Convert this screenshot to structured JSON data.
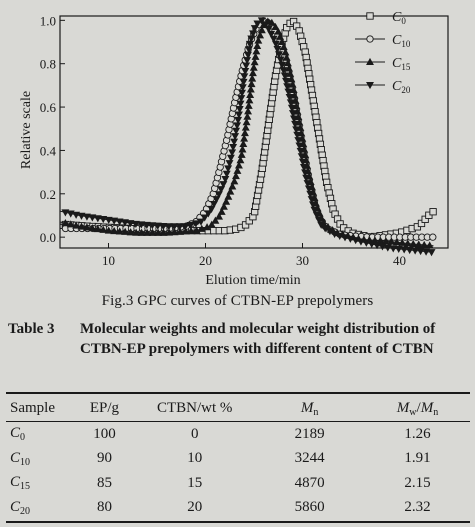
{
  "chart_data": {
    "type": "line",
    "title": "",
    "xlabel": "Elution time/min",
    "ylabel": "Relative scale",
    "xlim": [
      5,
      45
    ],
    "ylim": [
      -0.05,
      1.02
    ],
    "x_ticks": [
      10,
      20,
      30,
      40
    ],
    "y_ticks": [
      0.0,
      0.2,
      0.4,
      0.6,
      0.8,
      1.0
    ],
    "x_tick_labels": [
      "10",
      "20",
      "30",
      "40"
    ],
    "y_tick_labels": [
      "0.0",
      "0.2",
      "0.4",
      "0.6",
      "0.8",
      "1.0"
    ],
    "grid": false,
    "legend_position": "top-right",
    "series": [
      {
        "name": "C0",
        "label_main": "C",
        "label_sub": "0",
        "marker": "square",
        "points": [
          [
            5,
            0.06
          ],
          [
            8,
            0.05
          ],
          [
            12,
            0.04
          ],
          [
            16,
            0.03
          ],
          [
            20,
            0.03
          ],
          [
            22,
            0.03
          ],
          [
            23,
            0.035
          ],
          [
            24,
            0.05
          ],
          [
            25,
            0.1
          ],
          [
            25.8,
            0.3
          ],
          [
            26.5,
            0.52
          ],
          [
            27.2,
            0.74
          ],
          [
            27.8,
            0.88
          ],
          [
            28.4,
            0.97
          ],
          [
            29,
            1.0
          ],
          [
            29.6,
            0.96
          ],
          [
            30.3,
            0.85
          ],
          [
            31,
            0.66
          ],
          [
            31.8,
            0.44
          ],
          [
            32.5,
            0.25
          ],
          [
            33.2,
            0.12
          ],
          [
            34,
            0.05
          ],
          [
            35,
            0.02
          ],
          [
            37,
            0.0
          ],
          [
            40,
            0.02
          ],
          [
            42,
            0.05
          ],
          [
            43,
            0.1
          ],
          [
            43.8,
            0.13
          ]
        ]
      },
      {
        "name": "C10",
        "label_main": "C",
        "label_sub": "10",
        "marker": "circle",
        "points": [
          [
            5,
            0.04
          ],
          [
            8,
            0.04
          ],
          [
            12,
            0.04
          ],
          [
            16,
            0.04
          ],
          [
            18,
            0.05
          ],
          [
            19,
            0.07
          ],
          [
            20,
            0.12
          ],
          [
            20.8,
            0.2
          ],
          [
            21.5,
            0.32
          ],
          [
            22.3,
            0.47
          ],
          [
            23,
            0.62
          ],
          [
            23.8,
            0.77
          ],
          [
            24.6,
            0.9
          ],
          [
            25.3,
            0.97
          ],
          [
            26,
            1.0
          ],
          [
            26.8,
            0.98
          ],
          [
            27.6,
            0.92
          ],
          [
            28.4,
            0.8
          ],
          [
            29.2,
            0.63
          ],
          [
            30,
            0.42
          ],
          [
            30.8,
            0.24
          ],
          [
            31.6,
            0.1
          ],
          [
            32.5,
            0.04
          ],
          [
            34,
            0.01
          ],
          [
            37,
            0.0
          ],
          [
            40,
            0.0
          ],
          [
            42,
            0.0
          ],
          [
            43.5,
            0.0
          ]
        ]
      },
      {
        "name": "C15",
        "label_main": "C",
        "label_sub": "15",
        "marker": "triangle-up",
        "points": [
          [
            5,
            0.07
          ],
          [
            7,
            0.05
          ],
          [
            10,
            0.03
          ],
          [
            13,
            0.02
          ],
          [
            16,
            0.02
          ],
          [
            19,
            0.03
          ],
          [
            20.5,
            0.05
          ],
          [
            21.5,
            0.1
          ],
          [
            22.3,
            0.18
          ],
          [
            23,
            0.26
          ],
          [
            23.7,
            0.37
          ],
          [
            24.3,
            0.55
          ],
          [
            24.9,
            0.76
          ],
          [
            25.4,
            0.9
          ],
          [
            26,
            0.98
          ],
          [
            26.6,
            1.0
          ],
          [
            27.4,
            0.96
          ],
          [
            28.2,
            0.86
          ],
          [
            29,
            0.7
          ],
          [
            29.8,
            0.5
          ],
          [
            30.6,
            0.3
          ],
          [
            31.4,
            0.15
          ],
          [
            32.2,
            0.06
          ],
          [
            33.5,
            0.02
          ],
          [
            36,
            -0.01
          ],
          [
            39,
            -0.02
          ],
          [
            41,
            -0.03
          ],
          [
            43.5,
            -0.04
          ]
        ]
      },
      {
        "name": "C20",
        "label_main": "C",
        "label_sub": "20",
        "marker": "triangle-down",
        "points": [
          [
            5,
            0.12
          ],
          [
            7,
            0.1
          ],
          [
            10,
            0.08
          ],
          [
            13,
            0.06
          ],
          [
            16,
            0.05
          ],
          [
            18,
            0.05
          ],
          [
            19.5,
            0.07
          ],
          [
            20.5,
            0.12
          ],
          [
            21.3,
            0.19
          ],
          [
            22,
            0.26
          ],
          [
            22.7,
            0.38
          ],
          [
            23.4,
            0.55
          ],
          [
            24,
            0.74
          ],
          [
            24.6,
            0.9
          ],
          [
            25.2,
            0.98
          ],
          [
            25.8,
            1.0
          ],
          [
            26.4,
            0.97
          ],
          [
            27.2,
            0.9
          ],
          [
            28,
            0.78
          ],
          [
            28.8,
            0.62
          ],
          [
            29.6,
            0.44
          ],
          [
            30.4,
            0.27
          ],
          [
            31.2,
            0.13
          ],
          [
            32,
            0.05
          ],
          [
            33.5,
            0.01
          ],
          [
            36,
            -0.02
          ],
          [
            39,
            -0.05
          ],
          [
            43.5,
            -0.07
          ]
        ]
      }
    ]
  },
  "figure_caption": "Fig.3  GPC curves of CTBN-EP prepolymers",
  "table": {
    "label": "Table 3",
    "caption": "Molecular weights and molecular weight distribution of CTBN-EP prepolymers with different content of CTBN",
    "headers": {
      "sample": "Sample",
      "ep": "EP/g",
      "ctbn": "CTBN/wt %",
      "mn_main": "M",
      "mn_sub": "n",
      "mw_main": "M",
      "mw_sub": "w",
      "mw_slash": "/",
      "mw_den_main": "M",
      "mw_den_sub": "n"
    },
    "rows": [
      {
        "sample_main": "C",
        "sample_sub": "0",
        "ep": "100",
        "ctbn": "0",
        "mn": "2189",
        "pdi": "1.26"
      },
      {
        "sample_main": "C",
        "sample_sub": "10",
        "ep": "90",
        "ctbn": "10",
        "mn": "3244",
        "pdi": "1.91"
      },
      {
        "sample_main": "C",
        "sample_sub": "15",
        "ep": "85",
        "ctbn": "15",
        "mn": "4870",
        "pdi": "2.15"
      },
      {
        "sample_main": "C",
        "sample_sub": "20",
        "ep": "80",
        "ctbn": "20",
        "mn": "5860",
        "pdi": "2.32"
      }
    ]
  }
}
